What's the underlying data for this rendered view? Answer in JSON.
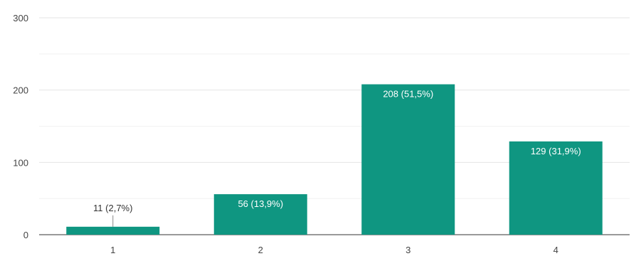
{
  "chart_data": {
    "type": "bar",
    "categories": [
      "1",
      "2",
      "3",
      "4"
    ],
    "values": [
      11,
      56,
      208,
      129
    ],
    "labels": [
      "11 (2,7%)",
      "56 (13,9%)",
      "208 (51,5%)",
      "129 (31,9%)"
    ],
    "ylim": [
      0,
      300
    ],
    "yticks": [
      "0",
      "100",
      "200",
      "300"
    ],
    "grid": true,
    "legend": "none",
    "bar_color": "#0f9681"
  }
}
